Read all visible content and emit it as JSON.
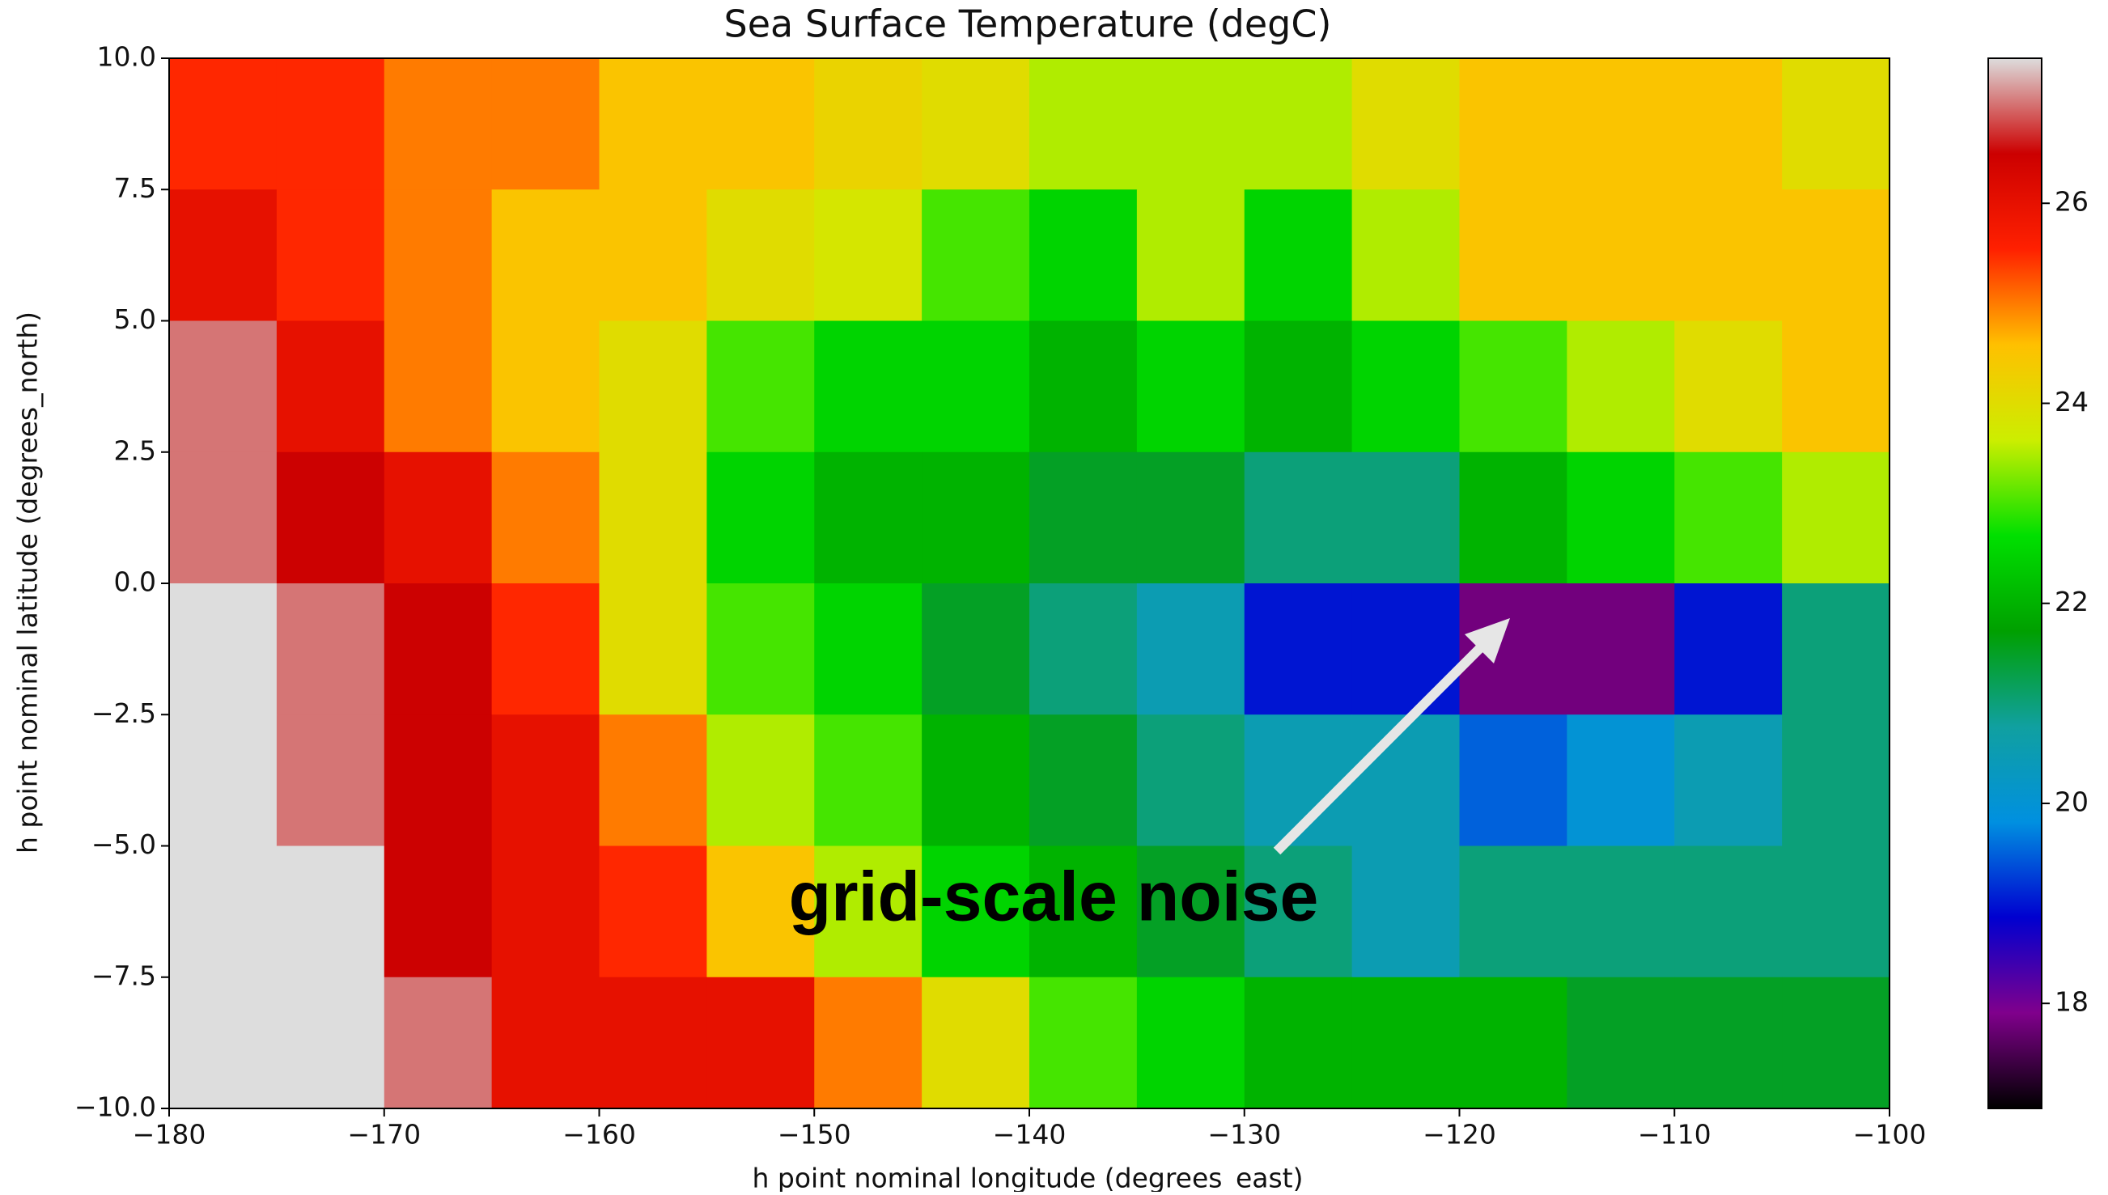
{
  "chart_data": {
    "type": "heatmap",
    "title": "Sea Surface Temperature (degC)",
    "x_label": "h point nominal longitude (degrees_east)",
    "y_label": "h point nominal latitude (degrees_north)",
    "annotation": "grid-scale noise",
    "x": [
      -177.5,
      -172.5,
      -167.5,
      -162.5,
      -157.5,
      -152.5,
      -147.5,
      -142.5,
      -137.5,
      -132.5,
      -127.5,
      -122.5,
      -117.5,
      -112.5,
      -107.5,
      -102.5
    ],
    "y": [
      8.75,
      6.25,
      3.75,
      1.25,
      -1.25,
      -3.75,
      -6.25,
      -8.75
    ],
    "values": [
      [
        25.5,
        25.5,
        25,
        25,
        24.5,
        24.5,
        24.2,
        24,
        23.5,
        23.5,
        23.5,
        24,
        24.5,
        24.5,
        24.5,
        24
      ],
      [
        26,
        25.5,
        25,
        24.5,
        24.5,
        24,
        23.8,
        23,
        22.5,
        23.5,
        22.5,
        23.5,
        24.5,
        24.5,
        24.5,
        24.5
      ],
      [
        27,
        26,
        25,
        24.5,
        24,
        23,
        22.5,
        22.5,
        22,
        22.5,
        22,
        22.5,
        23,
        23.5,
        24,
        24.5
      ],
      [
        27,
        26.5,
        26,
        25,
        24,
        22.5,
        22,
        22,
        21.5,
        21.5,
        21,
        21,
        22,
        22.5,
        23,
        23.5
      ],
      [
        27.5,
        27,
        26.5,
        25.5,
        24,
        23,
        22.5,
        21.5,
        21,
        20.5,
        19,
        19,
        17.8,
        17.8,
        19,
        21
      ],
      [
        27.5,
        27,
        26.5,
        26,
        25,
        23.5,
        23,
        22,
        21.5,
        21,
        20.5,
        20.5,
        19.5,
        20,
        20.5,
        21
      ],
      [
        27.5,
        27.5,
        26.5,
        26,
        25.5,
        24.5,
        23.5,
        22.5,
        22,
        21.5,
        21,
        20.5,
        21,
        21,
        21,
        21
      ],
      [
        27.5,
        27.5,
        27,
        26,
        26,
        26,
        25,
        24,
        23,
        22.5,
        22,
        22,
        22,
        21.5,
        21.5,
        21.5
      ]
    ],
    "xlim": [
      -180,
      -100
    ],
    "ylim": [
      -10,
      10
    ],
    "xticks": [
      {
        "value": -180,
        "label": "−180"
      },
      {
        "value": -170,
        "label": "−170"
      },
      {
        "value": -160,
        "label": "−160"
      },
      {
        "value": -150,
        "label": "−150"
      },
      {
        "value": -140,
        "label": "−140"
      },
      {
        "value": -130,
        "label": "−130"
      },
      {
        "value": -120,
        "label": "−120"
      },
      {
        "value": -110,
        "label": "−110"
      },
      {
        "value": -100,
        "label": "−100"
      }
    ],
    "yticks": [
      {
        "value": 10,
        "label": "10.0"
      },
      7.5,
      {
        "value": 5,
        "label": "5.0"
      },
      2.5,
      {
        "value": 0,
        "label": "0.0"
      },
      {
        "value": -2.5,
        "label": "−2.5"
      },
      {
        "value": -5,
        "label": "−5.0"
      },
      {
        "value": -7.5,
        "label": "−7.5"
      },
      {
        "value": -10,
        "label": "−10.0"
      }
    ],
    "colorbar": {
      "lim": [
        16.95,
        27.45
      ],
      "ticks": [
        18,
        20,
        22,
        24,
        26
      ]
    },
    "colormap": [
      "#000000",
      "#80008c",
      "#0000d0",
      "#0090e0",
      "#10a0a0",
      "#00a000",
      "#00e000",
      "#ccee00",
      "#ffc000",
      "#ff2000",
      "#cc0000",
      "#dddddd"
    ]
  }
}
